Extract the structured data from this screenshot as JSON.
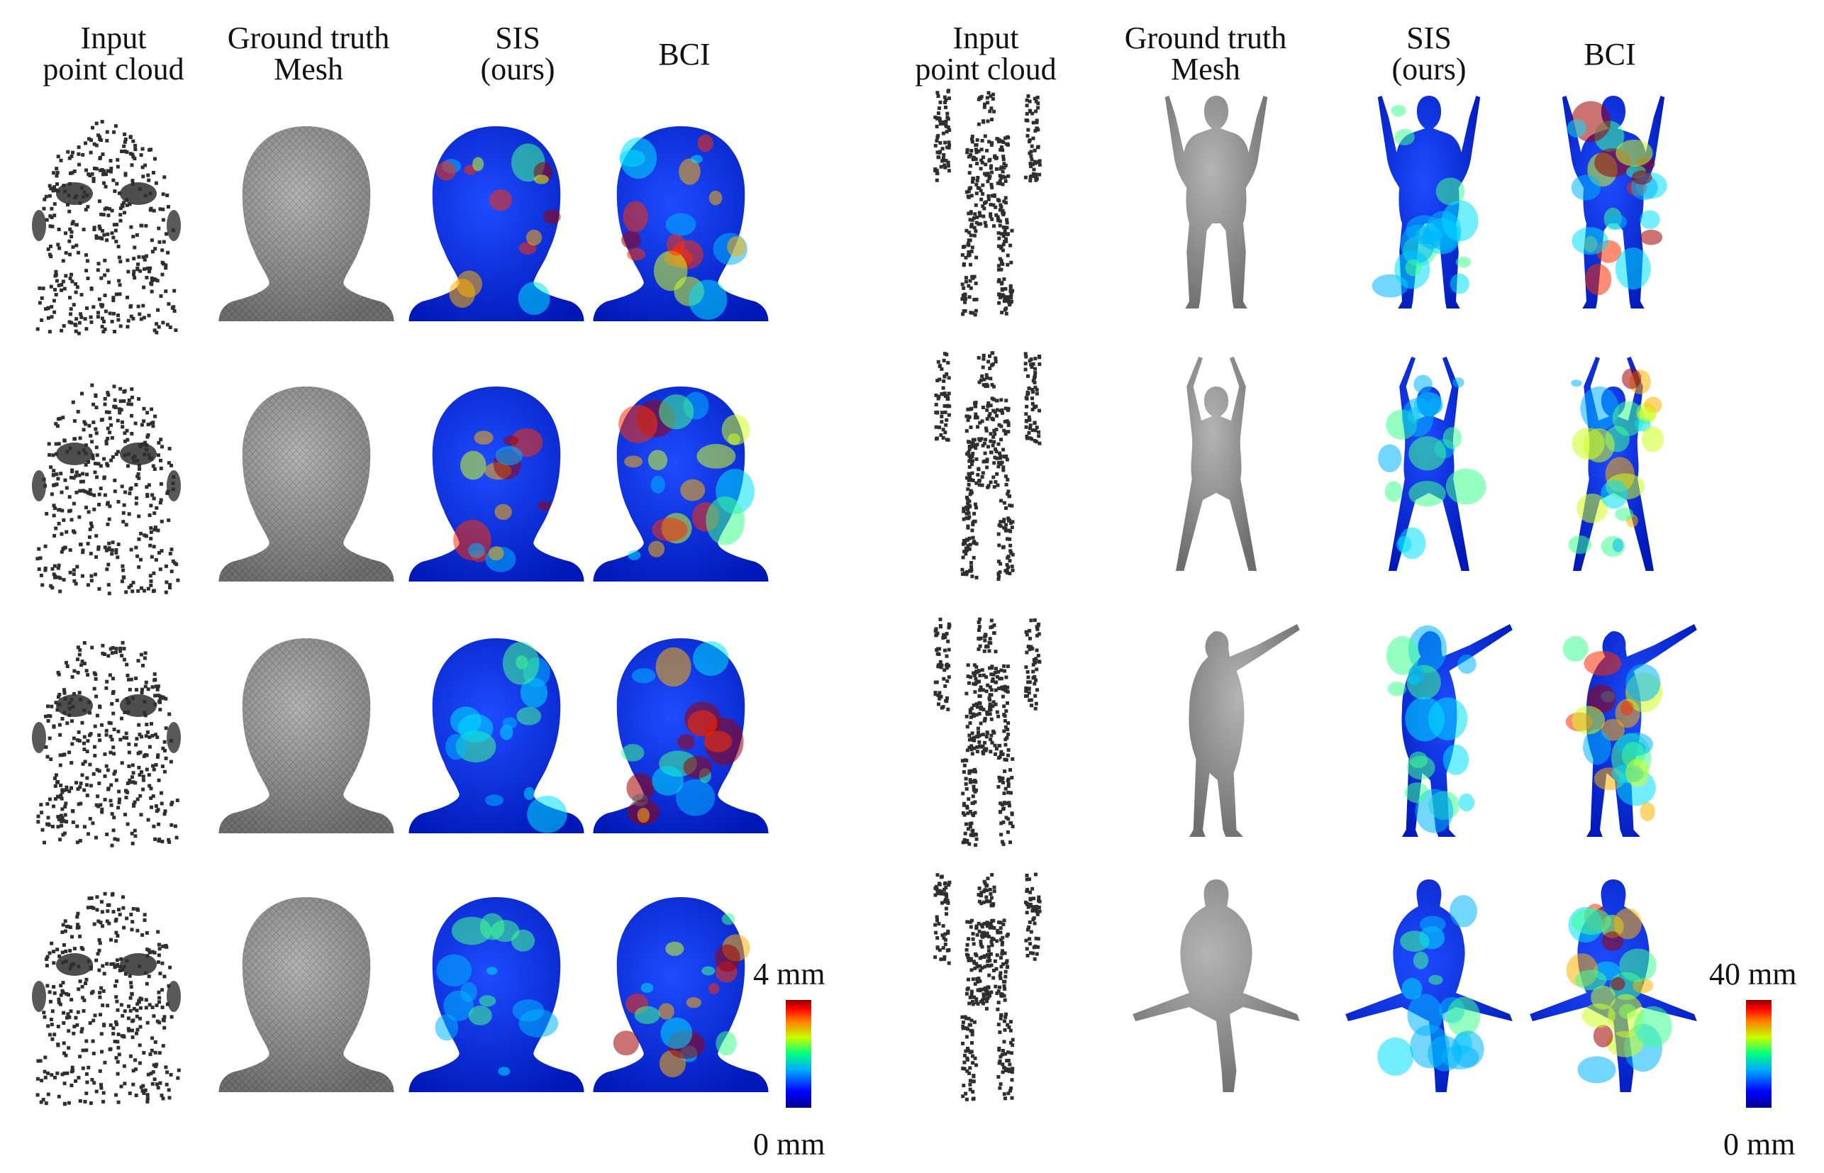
{
  "left_headers": [
    {
      "line1": "Input",
      "line2": "point cloud"
    },
    {
      "line1": "Ground truth",
      "line2": "Mesh"
    },
    {
      "line1": "SIS",
      "line2": "(ours)"
    },
    {
      "line1": "BCI",
      "line2": ""
    }
  ],
  "right_headers": [
    {
      "line1": "Input",
      "line2": "point cloud"
    },
    {
      "line1": "Ground truth",
      "line2": "Mesh"
    },
    {
      "line1": "SIS",
      "line2": "(ours)"
    },
    {
      "line1": "BCI",
      "line2": ""
    }
  ],
  "left_colorbar": {
    "max": "4 mm",
    "min": "0 mm"
  },
  "right_colorbar": {
    "max": "40 mm",
    "min": "0 mm"
  },
  "colors": {
    "pointcloud": "#2f2f2f",
    "mesh": "#8a8a8a",
    "jet_low": "#00008f",
    "jet_mid": "#00ff80",
    "jet_high": "#8f0000"
  },
  "rows": 4
}
